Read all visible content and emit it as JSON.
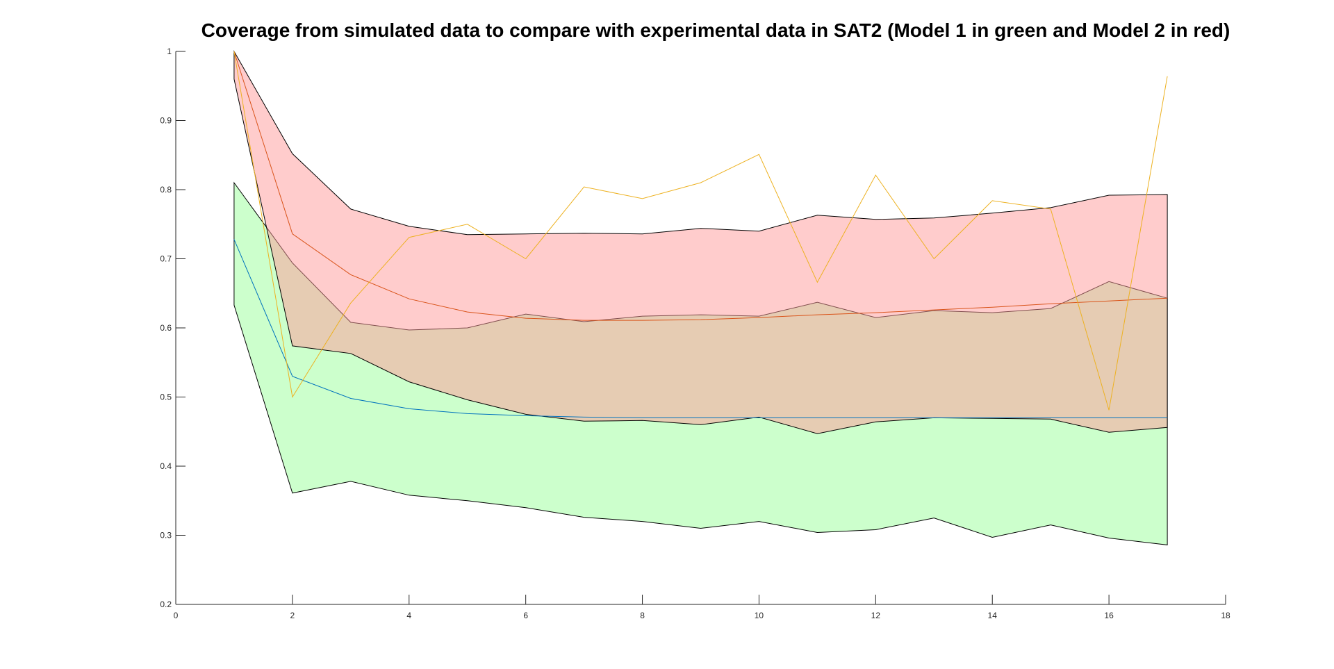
{
  "chart_data": {
    "type": "area",
    "title": "Coverage from simulated data to compare with experimental data in SAT2 (Model 1 in green and Model 2 in red)",
    "xlabel": "",
    "ylabel": "",
    "xlim": [
      0,
      18
    ],
    "ylim": [
      0.2,
      1
    ],
    "x_ticks": [
      "0",
      "2",
      "4",
      "6",
      "8",
      "10",
      "12",
      "14",
      "16",
      "18"
    ],
    "y_ticks": [
      "0.2",
      "0.3",
      "0.4",
      "0.5",
      "0.6",
      "0.7",
      "0.8",
      "0.9",
      "1"
    ],
    "grid": false,
    "x": [
      1,
      2,
      3,
      4,
      5,
      6,
      7,
      8,
      9,
      10,
      11,
      12,
      13,
      14,
      15,
      16,
      17
    ],
    "bands": [
      {
        "model": "Model 1",
        "fill": "#ccffcc",
        "upper": [
          0.81,
          0.694,
          0.608,
          0.597,
          0.6,
          0.62,
          0.609,
          0.617,
          0.619,
          0.617,
          0.637,
          0.615,
          0.625,
          0.622,
          0.628,
          0.667,
          0.643
        ],
        "lower": [
          0.633,
          0.361,
          0.378,
          0.358,
          0.35,
          0.34,
          0.326,
          0.32,
          0.31,
          0.32,
          0.304,
          0.308,
          0.325,
          0.297,
          0.315,
          0.296,
          0.286
        ]
      },
      {
        "model": "Model 2",
        "fill": "#ff9999",
        "upper": [
          1.0,
          0.852,
          0.772,
          0.747,
          0.735,
          0.736,
          0.737,
          0.736,
          0.744,
          0.74,
          0.763,
          0.757,
          0.759,
          0.766,
          0.774,
          0.792,
          0.793
        ],
        "lower": [
          0.96,
          0.574,
          0.563,
          0.522,
          0.496,
          0.475,
          0.465,
          0.466,
          0.46,
          0.471,
          0.447,
          0.464,
          0.47,
          0.469,
          0.468,
          0.449,
          0.456
        ]
      }
    ],
    "lines": [
      {
        "model": "Model 1",
        "color": "#0072bd",
        "values": [
          0.728,
          0.53,
          0.498,
          0.483,
          0.476,
          0.473,
          0.471,
          0.47,
          0.47,
          0.47,
          0.47,
          0.47,
          0.47,
          0.47,
          0.47,
          0.47,
          0.47
        ]
      },
      {
        "model": "Model 2",
        "color": "#d95319",
        "values": [
          1.0,
          0.736,
          0.677,
          0.642,
          0.623,
          0.614,
          0.611,
          0.611,
          0.612,
          0.615,
          0.619,
          0.622,
          0.626,
          0.63,
          0.635,
          0.639,
          0.643
        ]
      },
      {
        "model": "Experimental",
        "color": "#edb120",
        "values": [
          1.0,
          0.5,
          0.636,
          0.731,
          0.75,
          0.7,
          0.804,
          0.787,
          0.81,
          0.851,
          0.666,
          0.821,
          0.7,
          0.784,
          0.772,
          0.481,
          0.964
        ]
      }
    ]
  }
}
